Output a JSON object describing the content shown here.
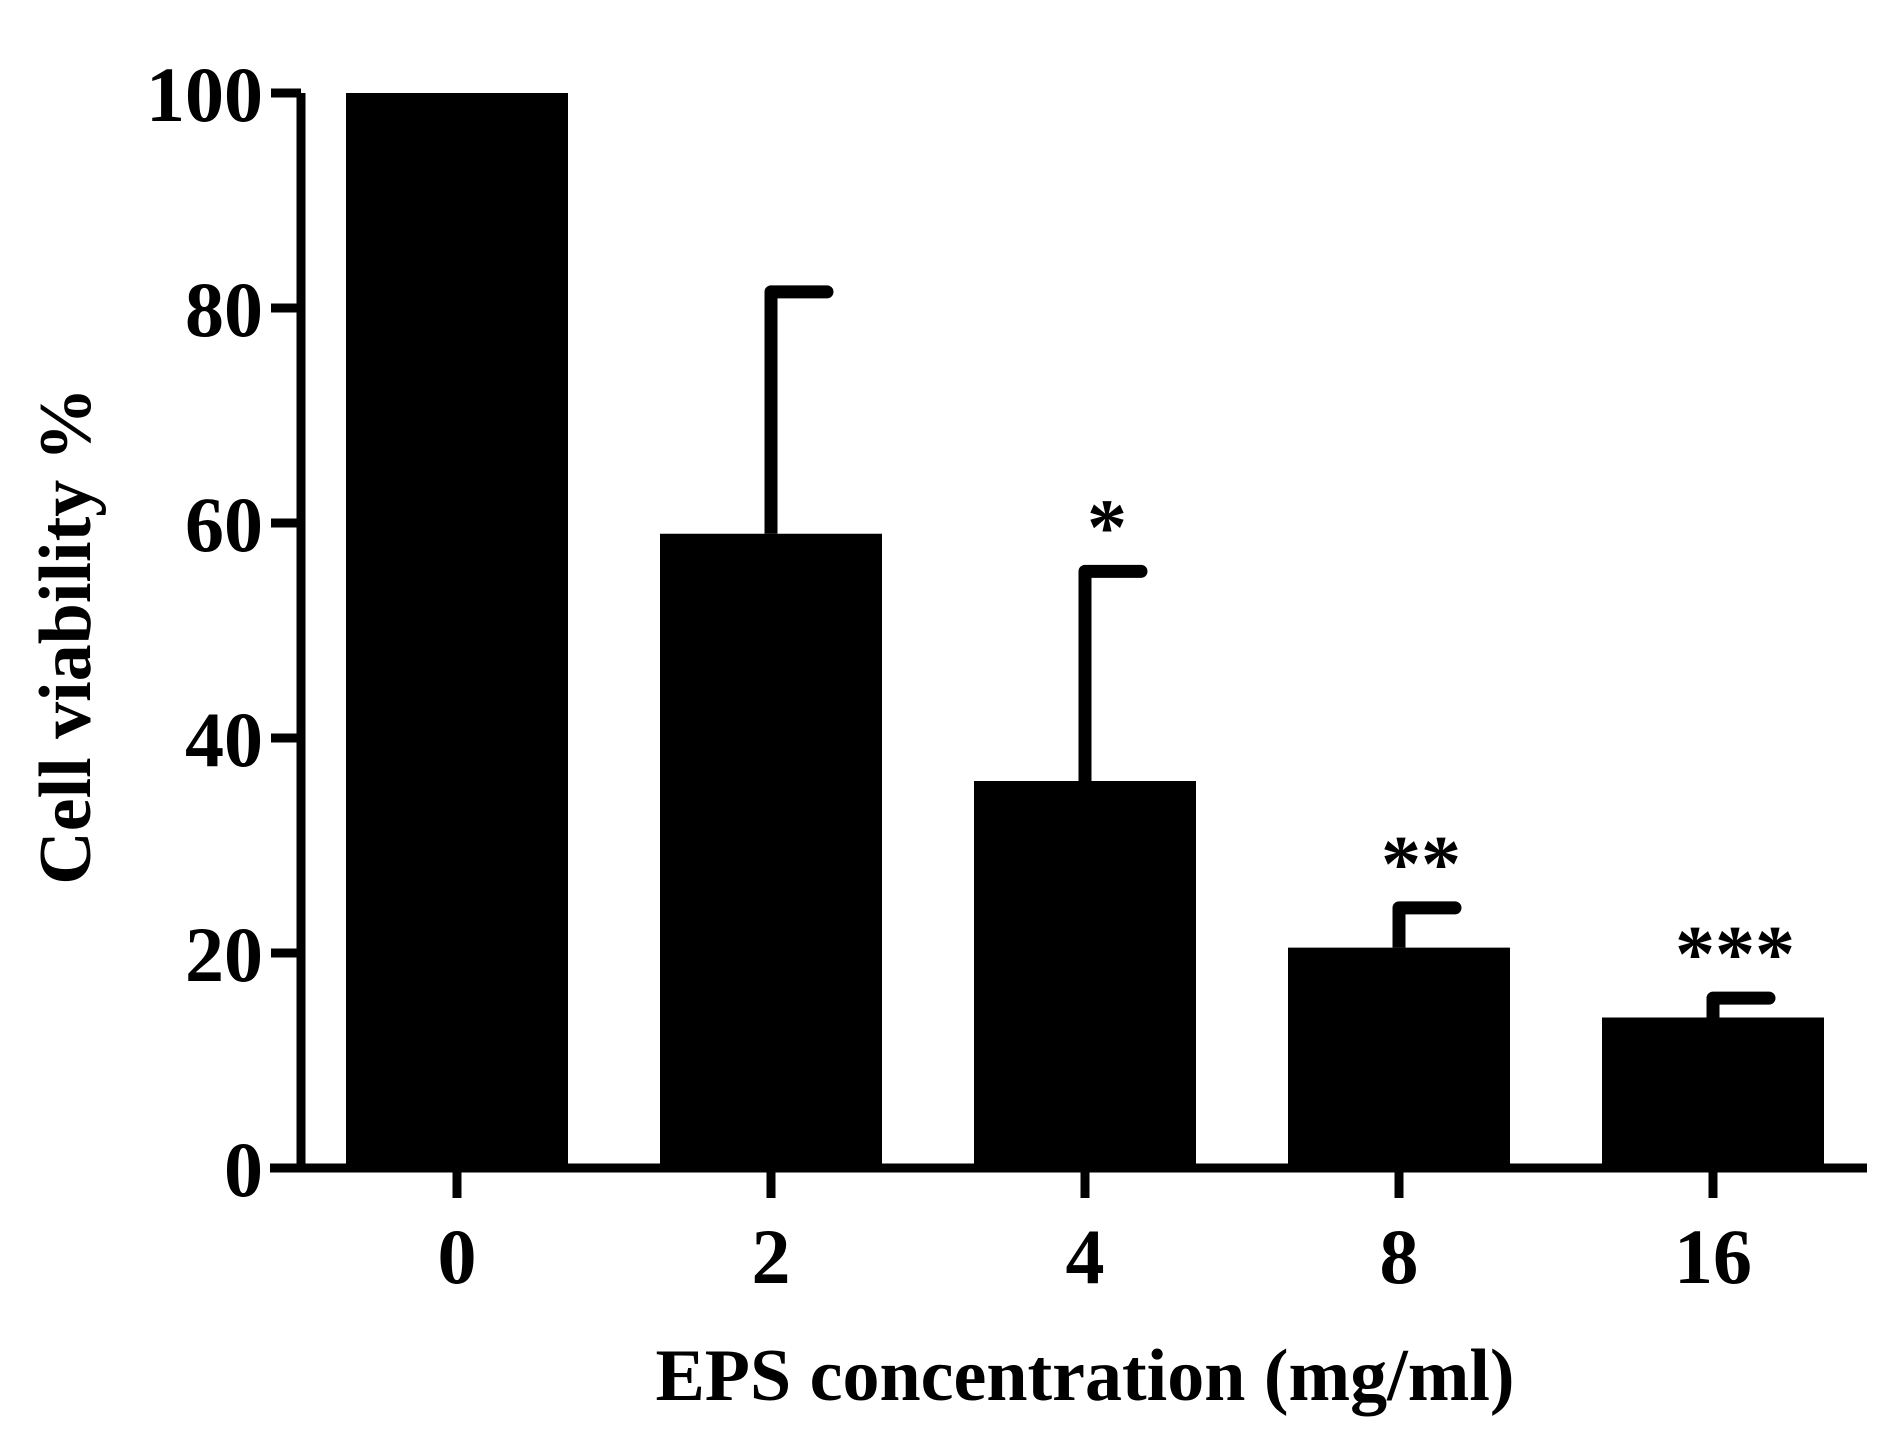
{
  "chart_data": {
    "type": "bar",
    "title": "",
    "xlabel": "EPS concentration (mg/ml)",
    "ylabel": "Cell viability %",
    "categories": [
      "0",
      "2",
      "4",
      "8",
      "16"
    ],
    "values": [
      100,
      59,
      36,
      20.5,
      14
    ],
    "error_upper": [
      0,
      22.5,
      19.5,
      3.7,
      1.8
    ],
    "significance": [
      "",
      "",
      "*",
      "**",
      "***"
    ],
    "ylim": [
      0,
      100
    ],
    "yticks": [
      0,
      20,
      40,
      60,
      80,
      100
    ],
    "grid": false,
    "bar_color": "#000000"
  }
}
